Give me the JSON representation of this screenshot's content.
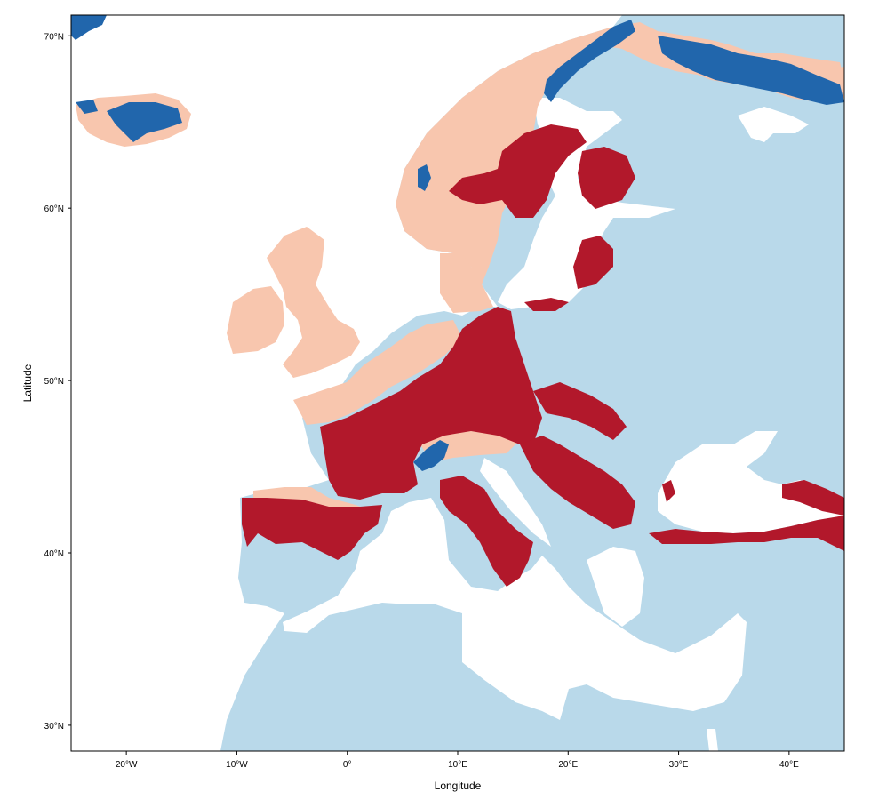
{
  "map": {
    "xlabel": "Longitude",
    "ylabel": "Latitude",
    "x_ticks": [
      "20°W",
      "10°W",
      "0°",
      "10°E",
      "20°E",
      "30°E",
      "40°E"
    ],
    "y_ticks": [
      "30°N",
      "40°N",
      "50°N",
      "60°N",
      "70°N"
    ],
    "x_range": [
      -25,
      45
    ],
    "y_range": [
      28.5,
      71.2
    ],
    "colors": {
      "background_land": "#b9d9ea",
      "water": "#ffffff",
      "category_salmon": "#f8c6ae",
      "category_red": "#b2182b",
      "category_blue": "#2166ac"
    }
  }
}
